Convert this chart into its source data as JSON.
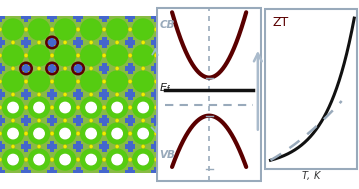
{
  "fig_width": 3.59,
  "fig_height": 1.89,
  "dpi": 100,
  "atom_green": "#55cc11",
  "atom_blue": "#4466cc",
  "atom_yellow": "#eeee00",
  "circle_color": "#5a0000",
  "arrow_color": "#99bbcc",
  "band_border": "#99aabb",
  "band_curve_color": "#5a0000",
  "band_ef_color": "#111111",
  "band_dashed_color": "#99aabb",
  "band_label_color": "#99aabb",
  "band_ef_label_color": "#222222",
  "band_arrow_color": "#aabbcc",
  "cb_label": "CB",
  "vb_label": "VB",
  "ef_label": "$E_{\\mathrm{f}}$",
  "zt_border": "#99aabb",
  "zt_curve_color": "#111111",
  "zt_dashed_color": "#99aabb",
  "zt_title": "ZT",
  "zt_title_color": "#5a0000",
  "zt_xlabel": "$T$, K",
  "zt_xlabel_color": "#333333"
}
